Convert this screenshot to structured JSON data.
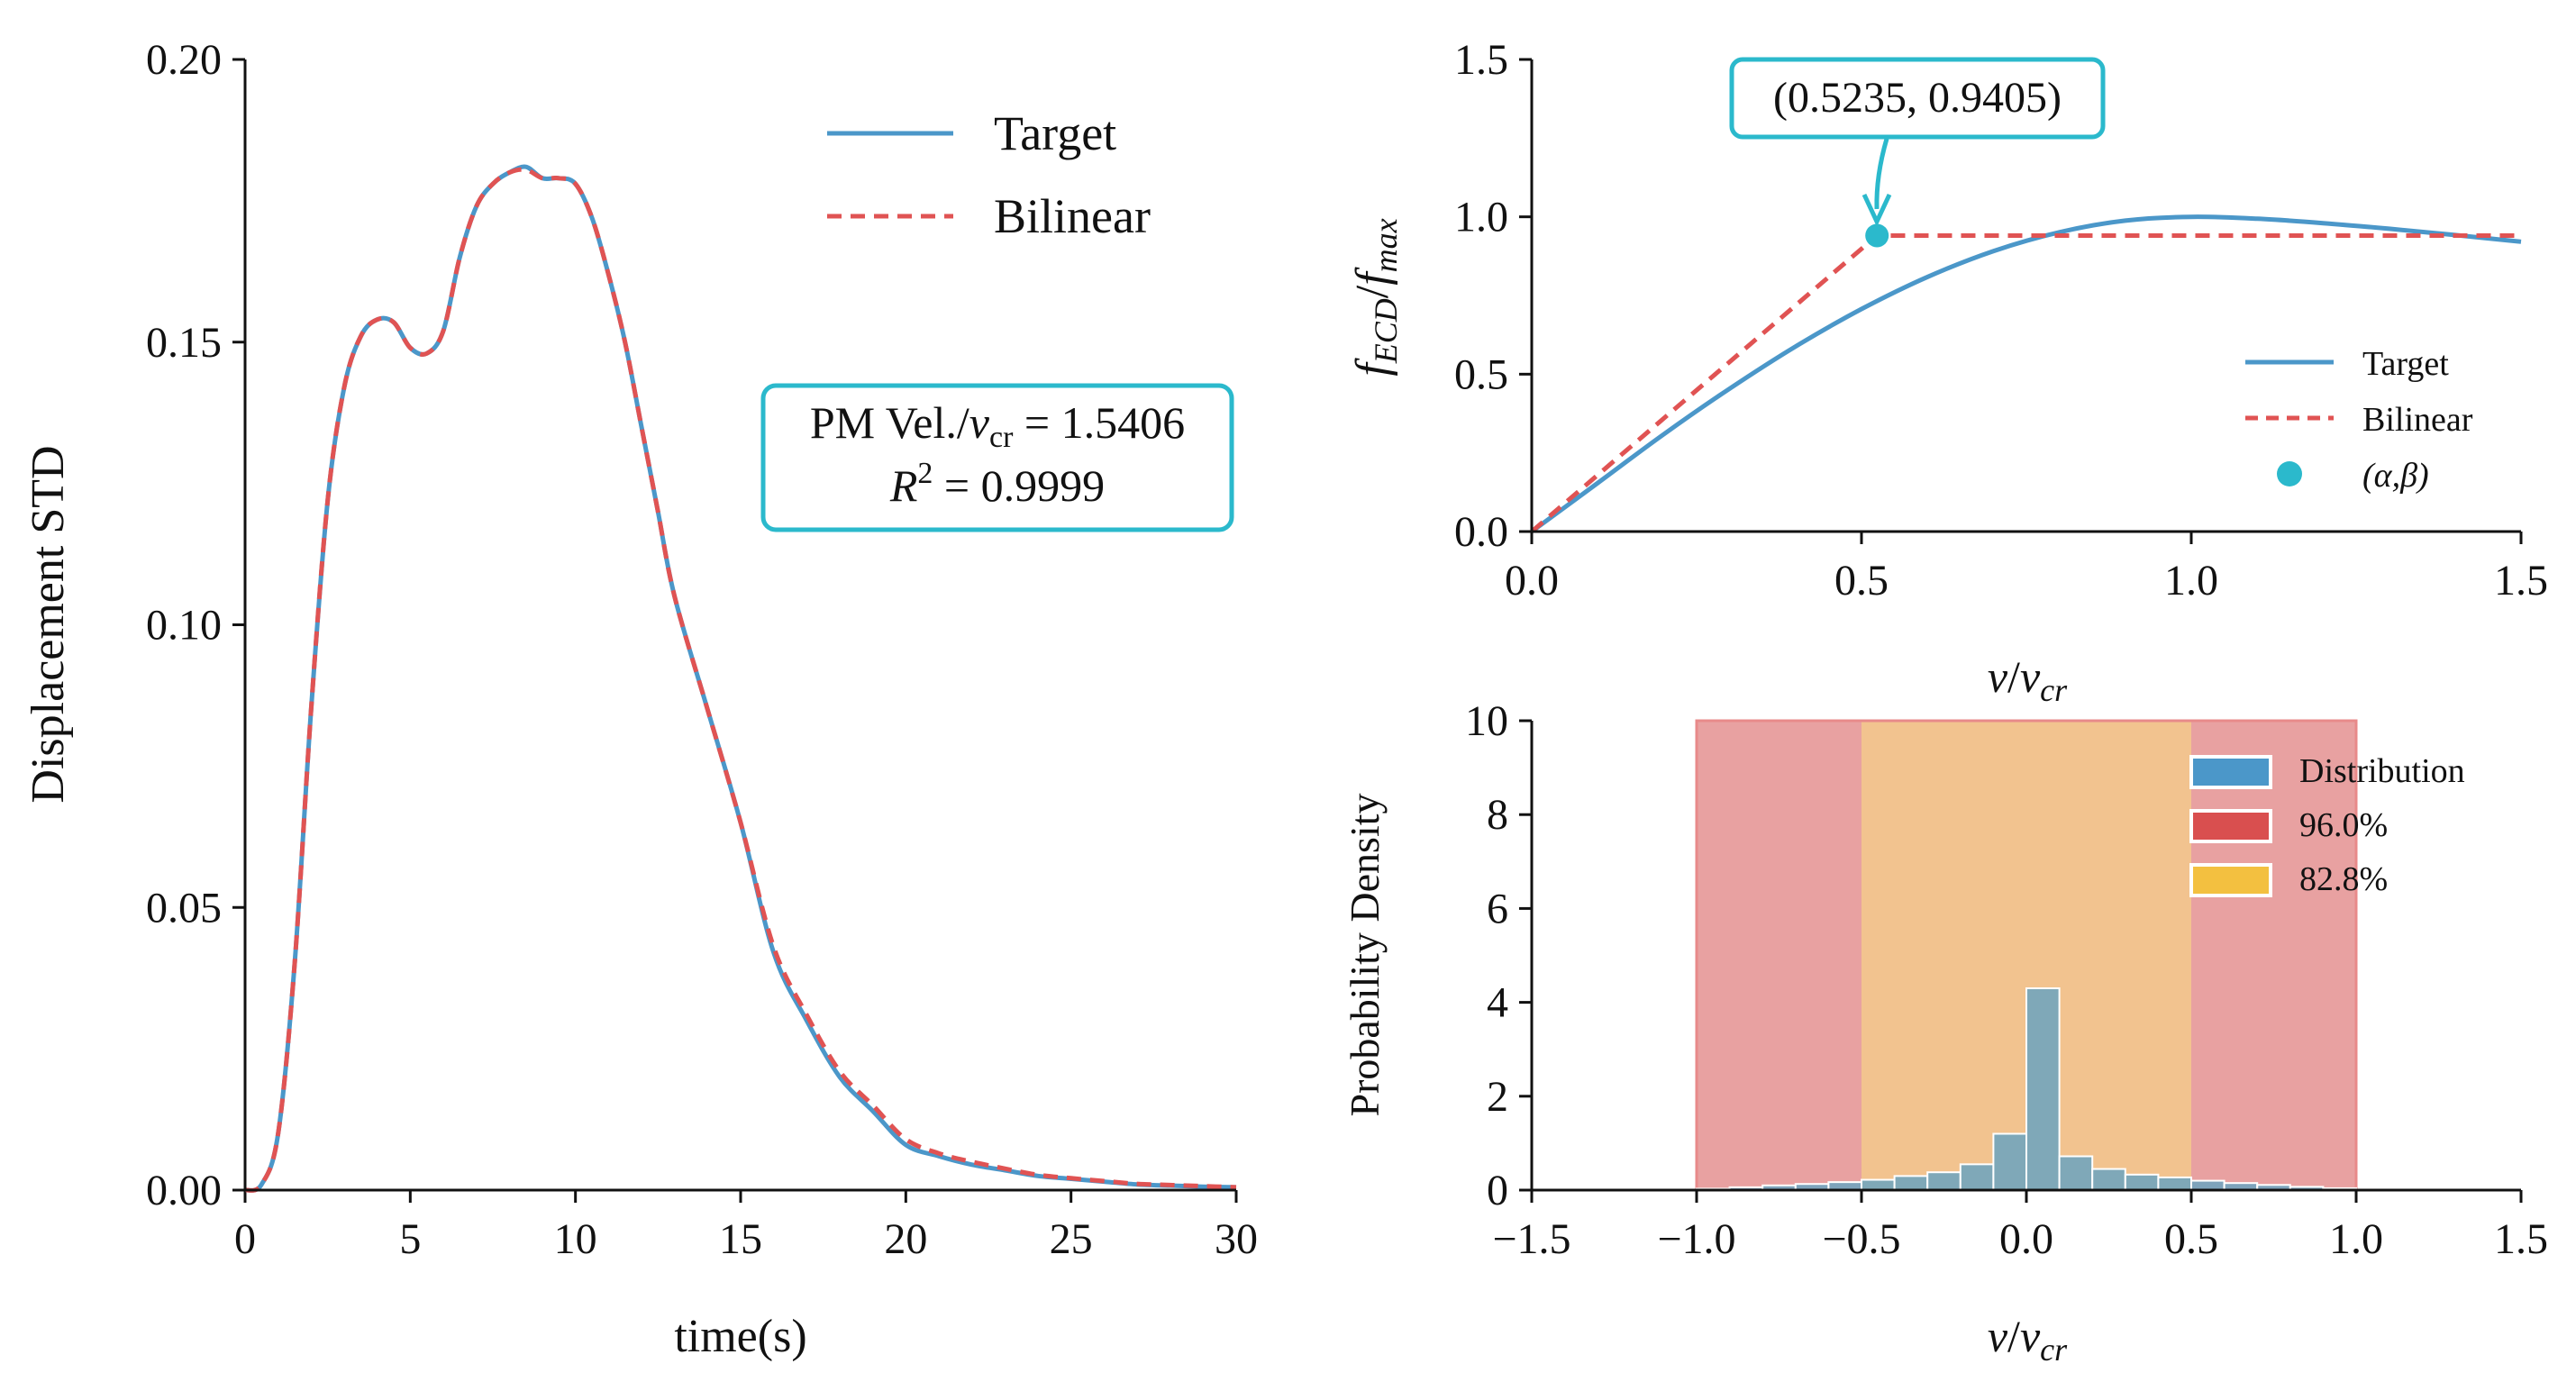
{
  "colors": {
    "target": "#4b97c9",
    "bilinear": "#e05353",
    "marker": "#2bb9cc",
    "annotation_border": "#2bb9cc",
    "hist_fill": "#6ba3bf",
    "band_96": "#e8a1a1",
    "band_828": "#f2c38f",
    "legend_dist": "#4b97c9",
    "legend_96": "#d94f4f",
    "legend_828": "#f3c040"
  },
  "chart_data": [
    {
      "id": "left",
      "type": "line",
      "xlabel": "time(s)",
      "ylabel": "Displacement STD",
      "xlim": [
        0,
        30
      ],
      "ylim": [
        0,
        0.2
      ],
      "xticks": [
        "0",
        "5",
        "10",
        "15",
        "20",
        "25",
        "30"
      ],
      "yticks": [
        "0.00",
        "0.05",
        "0.10",
        "0.15",
        "0.20"
      ],
      "legend": [
        "Target",
        "Bilinear"
      ],
      "annotation": {
        "line1": "PM Vel./",
        "v": "v",
        "sub": "cr",
        "eq": " = 1.5406",
        "r2_label": "R",
        "r2_exp": "2",
        "r2_value": " = 0.9999"
      },
      "series": [
        {
          "name": "Target",
          "x": [
            0,
            0.5,
            1,
            1.5,
            2,
            2.5,
            3,
            3.5,
            4,
            4.5,
            5,
            5.5,
            6,
            6.5,
            7,
            7.5,
            8,
            8.5,
            9,
            9.5,
            10,
            10.5,
            11,
            11.5,
            12,
            12.5,
            13,
            14,
            15,
            16,
            17,
            18,
            19,
            20,
            21,
            22,
            23,
            24,
            25,
            26,
            27,
            28,
            29,
            30
          ],
          "values": [
            0,
            0.001,
            0.01,
            0.04,
            0.085,
            0.122,
            0.142,
            0.151,
            0.154,
            0.1535,
            0.149,
            0.148,
            0.152,
            0.165,
            0.174,
            0.178,
            0.18,
            0.181,
            0.179,
            0.179,
            0.178,
            0.172,
            0.162,
            0.15,
            0.135,
            0.12,
            0.105,
            0.085,
            0.065,
            0.042,
            0.03,
            0.02,
            0.014,
            0.008,
            0.006,
            0.0045,
            0.0035,
            0.0025,
            0.002,
            0.0015,
            0.001,
            0.0008,
            0.0006,
            0.0005
          ]
        },
        {
          "name": "Bilinear",
          "x": [
            0,
            0.5,
            1,
            1.5,
            2,
            2.5,
            3,
            3.5,
            4,
            4.5,
            5,
            5.5,
            6,
            6.5,
            7,
            7.5,
            8,
            8.5,
            9,
            9.5,
            10,
            10.5,
            11,
            11.5,
            12,
            12.5,
            13,
            14,
            15,
            16,
            17,
            18,
            19,
            20,
            21,
            22,
            23,
            24,
            25,
            26,
            27,
            28,
            29,
            30
          ],
          "values": [
            0,
            0.001,
            0.01,
            0.04,
            0.085,
            0.122,
            0.142,
            0.151,
            0.154,
            0.1535,
            0.149,
            0.148,
            0.152,
            0.165,
            0.174,
            0.178,
            0.18,
            0.1805,
            0.179,
            0.179,
            0.178,
            0.172,
            0.162,
            0.15,
            0.135,
            0.12,
            0.105,
            0.085,
            0.065,
            0.043,
            0.031,
            0.021,
            0.015,
            0.009,
            0.0065,
            0.005,
            0.0038,
            0.0027,
            0.0021,
            0.0016,
            0.0011,
            0.0009,
            0.0007,
            0.0005
          ]
        }
      ]
    },
    {
      "id": "top-right",
      "type": "line",
      "xlabel": {
        "v": "v",
        "slash": "/",
        "v2": "v",
        "sub": "cr"
      },
      "ylabel": {
        "f": "f",
        "sub1": "ECD",
        "slash": "/",
        "f2": "f",
        "sub2": "max"
      },
      "xlim": [
        0,
        1.5
      ],
      "ylim": [
        0,
        1.5
      ],
      "xticks": [
        "0.0",
        "0.5",
        "1.0",
        "1.5"
      ],
      "yticks": [
        "0.0",
        "0.5",
        "1.0",
        "1.5"
      ],
      "legend": [
        "Target",
        "Bilinear",
        "(α,β)"
      ],
      "annotation": "(0.5235, 0.9405)",
      "point": {
        "x": 0.5235,
        "y": 0.9405
      },
      "series": [
        {
          "name": "Target",
          "x": [
            0,
            0.1,
            0.2,
            0.3,
            0.4,
            0.5,
            0.6,
            0.7,
            0.8,
            0.9,
            1.0,
            1.1,
            1.2,
            1.3,
            1.4,
            1.5
          ],
          "values": [
            0,
            0.154,
            0.309,
            0.454,
            0.588,
            0.707,
            0.809,
            0.891,
            0.951,
            0.988,
            1.0,
            0.994,
            0.98,
            0.962,
            0.942,
            0.921
          ]
        },
        {
          "name": "Bilinear",
          "x": [
            0,
            0.5235,
            1.5
          ],
          "values": [
            0,
            0.9405,
            0.9405
          ]
        }
      ]
    },
    {
      "id": "bottom-right",
      "type": "bar",
      "xlabel": {
        "v": "v",
        "slash": "/",
        "v2": "v",
        "sub": "cr"
      },
      "ylabel": "Probability Density",
      "xlim": [
        -1.5,
        1.5
      ],
      "ylim": [
        0,
        10
      ],
      "xticks": [
        "−1.5",
        "−1.0",
        "−0.5",
        "0.0",
        "0.5",
        "1.0",
        "1.5"
      ],
      "yticks": [
        "0",
        "2",
        "4",
        "6",
        "8",
        "10"
      ],
      "legend": [
        "Distribution",
        "96.0%",
        "82.8%"
      ],
      "bands": [
        {
          "name": "96.0%",
          "range": [
            -1.0,
            1.0
          ]
        },
        {
          "name": "82.8%",
          "range": [
            -0.5,
            0.5
          ]
        }
      ],
      "bin_edges": [
        -1.0,
        -0.9,
        -0.8,
        -0.7,
        -0.6,
        -0.5,
        -0.4,
        -0.3,
        -0.2,
        -0.1,
        0.0,
        0.1,
        0.2,
        0.3,
        0.4,
        0.5,
        0.6,
        0.7,
        0.8,
        0.9,
        1.0
      ],
      "values": [
        0.03,
        0.06,
        0.1,
        0.13,
        0.17,
        0.22,
        0.3,
        0.38,
        0.55,
        1.2,
        4.3,
        0.72,
        0.45,
        0.33,
        0.27,
        0.2,
        0.15,
        0.11,
        0.07,
        0.04
      ]
    }
  ]
}
